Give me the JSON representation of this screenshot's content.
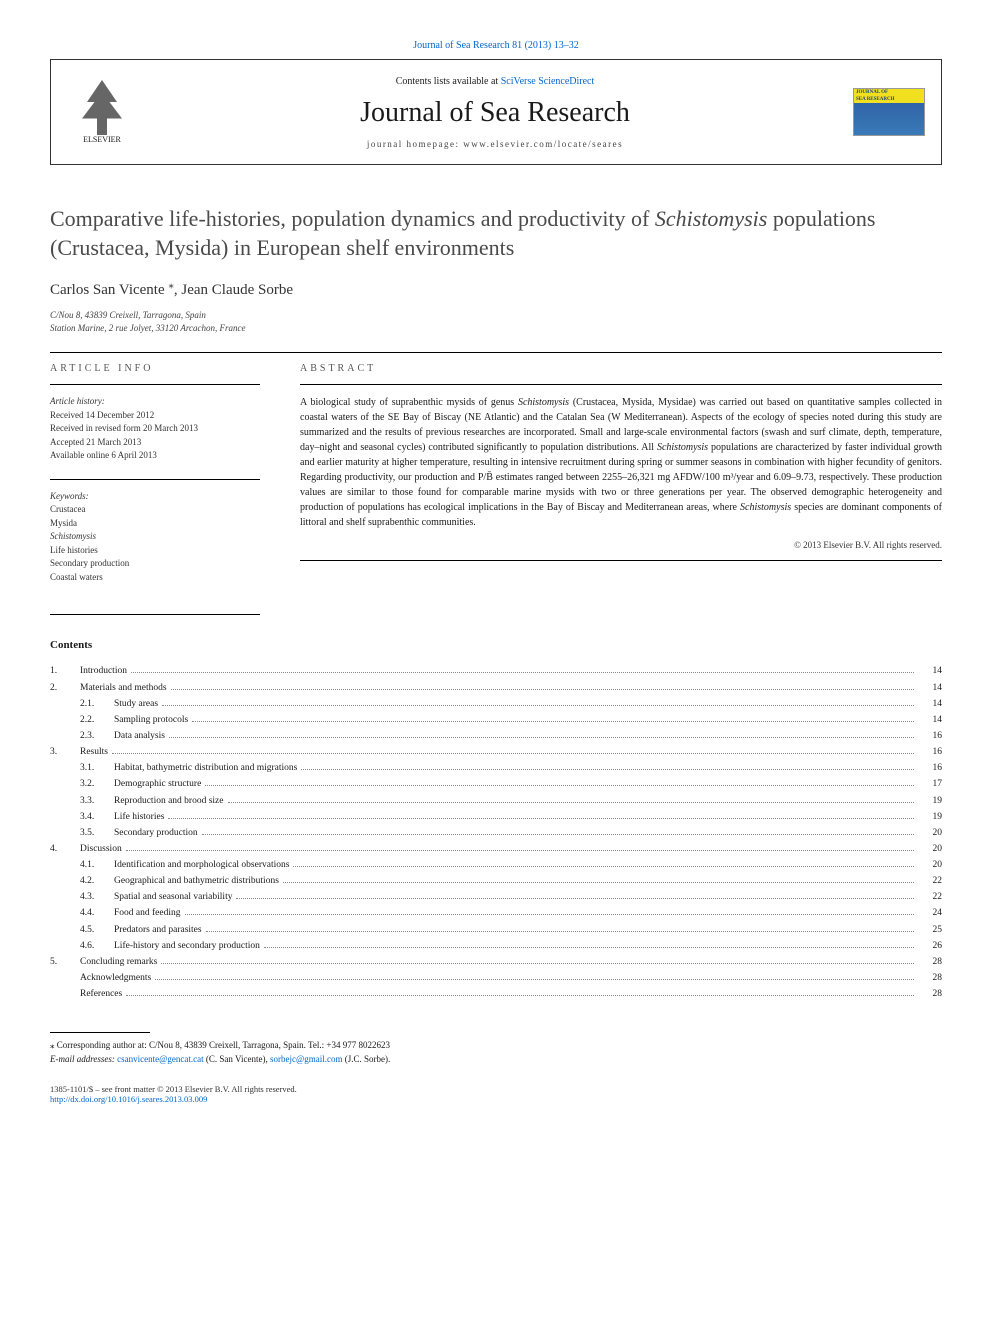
{
  "journal_ref": {
    "text": "Journal of Sea Research 81 (2013) 13–32",
    "url_label": "Journal of Sea Research 81 (2013) 13–32"
  },
  "header": {
    "publisher": "ELSEVIER",
    "contents_prefix": "Contents lists available at ",
    "contents_link": "SciVerse ScienceDirect",
    "journal_name": "Journal of Sea Research",
    "homepage_prefix": "journal homepage: ",
    "homepage": "www.elsevier.com/locate/seares",
    "cover_title1": "JOURNAL OF",
    "cover_title2": "SEA RESEARCH"
  },
  "article": {
    "title_pre": "Comparative life-histories, population dynamics and productivity of ",
    "title_em": "Schistomysis",
    "title_post": " populations (Crustacea, Mysida) in European shelf environments",
    "authors": "Carlos San Vicente ",
    "author_marker": "⁎",
    "author_sep": ", ",
    "author2": "Jean Claude Sorbe",
    "affil1": "C/Nou 8, 43839 Creixell, Tarragona, Spain",
    "affil2": "Station Marine, 2 rue Jolyet, 33120 Arcachon, France"
  },
  "info": {
    "heading": "article info",
    "history_label": "Article history:",
    "h1": "Received 14 December 2012",
    "h2": "Received in revised form 20 March 2013",
    "h3": "Accepted 21 March 2013",
    "h4": "Available online 6 April 2013",
    "keywords_label": "Keywords:",
    "k1": "Crustacea",
    "k2": "Mysida",
    "k3": "Schistomysis",
    "k4": "Life histories",
    "k5": "Secondary production",
    "k6": "Coastal waters"
  },
  "abstract": {
    "heading": "abstract",
    "text_parts": {
      "p1": "A biological study of suprabenthic mysids of genus ",
      "em1": "Schistomysis",
      "p2": " (Crustacea, Mysida, Mysidae) was carried out based on quantitative samples collected in coastal waters of the SE Bay of Biscay (NE Atlantic) and the Catalan Sea (W Mediterranean). Aspects of the ecology of species noted during this study are summarized and the results of previous researches are incorporated. Small and large-scale environmental factors (swash and surf climate, depth, temperature, day–night and seasonal cycles) contributed significantly to population distributions. All ",
      "em2": "Schistomysis",
      "p3": " populations are characterized by faster individual growth and earlier maturity at higher temperature, resulting in intensive recruitment during spring or summer seasons in combination with higher fecundity of genitors. Regarding productivity, our production and P/B̄ estimates ranged between 2255–26,321 mg AFDW/100 m³/year and 6.09–9.73, respectively. These production values are similar to those found for comparable marine mysids with two or three generations per year. The observed demographic heterogeneity and production of populations has ecological implications in the Bay of Biscay and Mediterranean areas, where ",
      "em3": "Schistomysis",
      "p4": " species are dominant components of littoral and shelf suprabenthic communities."
    },
    "copyright": "© 2013 Elsevier B.V. All rights reserved."
  },
  "contents": {
    "heading": "Contents",
    "items": [
      {
        "num": "1.",
        "title": "Introduction",
        "page": "14"
      },
      {
        "num": "2.",
        "title": "Materials and methods",
        "page": "14"
      },
      {
        "num": "2.1.",
        "title": "Study areas",
        "page": "14",
        "sub": true
      },
      {
        "num": "2.2.",
        "title": "Sampling protocols",
        "page": "14",
        "sub": true
      },
      {
        "num": "2.3.",
        "title": "Data analysis",
        "page": "16",
        "sub": true
      },
      {
        "num": "3.",
        "title": "Results",
        "page": "16"
      },
      {
        "num": "3.1.",
        "title": "Habitat, bathymetric distribution and migrations",
        "page": "16",
        "sub": true
      },
      {
        "num": "3.2.",
        "title": "Demographic structure",
        "page": "17",
        "sub": true
      },
      {
        "num": "3.3.",
        "title": "Reproduction and brood size",
        "page": "19",
        "sub": true
      },
      {
        "num": "3.4.",
        "title": "Life histories",
        "page": "19",
        "sub": true
      },
      {
        "num": "3.5.",
        "title": "Secondary production",
        "page": "20",
        "sub": true
      },
      {
        "num": "4.",
        "title": "Discussion",
        "page": "20"
      },
      {
        "num": "4.1.",
        "title": "Identification and morphological observations",
        "page": "20",
        "sub": true
      },
      {
        "num": "4.2.",
        "title": "Geographical and bathymetric distributions",
        "page": "22",
        "sub": true
      },
      {
        "num": "4.3.",
        "title": "Spatial and seasonal variability",
        "page": "22",
        "sub": true
      },
      {
        "num": "4.4.",
        "title": "Food and feeding",
        "page": "24",
        "sub": true
      },
      {
        "num": "4.5.",
        "title": "Predators and parasites",
        "page": "25",
        "sub": true
      },
      {
        "num": "4.6.",
        "title": "Life-history and secondary production",
        "page": "26",
        "sub": true
      },
      {
        "num": "5.",
        "title": "Concluding remarks",
        "page": "28"
      },
      {
        "num": "",
        "title": "Acknowledgments",
        "page": "28"
      },
      {
        "num": "",
        "title": "References",
        "page": "28"
      }
    ]
  },
  "footnotes": {
    "corr_marker": "⁎",
    "corr_text": " Corresponding author at: C/Nou 8, 43839 Creixell, Tarragona, Spain. Tel.: +34 977 8022623",
    "email_label": "E-mail addresses: ",
    "email1": "csanvicente@gencat.cat",
    "email1_post": " (C. San Vicente), ",
    "email2": "sorbejc@gmail.com",
    "email2_post": " (J.C. Sorbe)."
  },
  "footer": {
    "line1": "1385-1101/$ – see front matter © 2013 Elsevier B.V. All rights reserved.",
    "doi": "http://dx.doi.org/10.1016/j.seares.2013.03.009"
  },
  "colors": {
    "link": "#0066cc",
    "text": "#1a1a1a",
    "muted": "#555555",
    "cover_bg": "#2b5aa0",
    "cover_band": "#f0e020"
  }
}
